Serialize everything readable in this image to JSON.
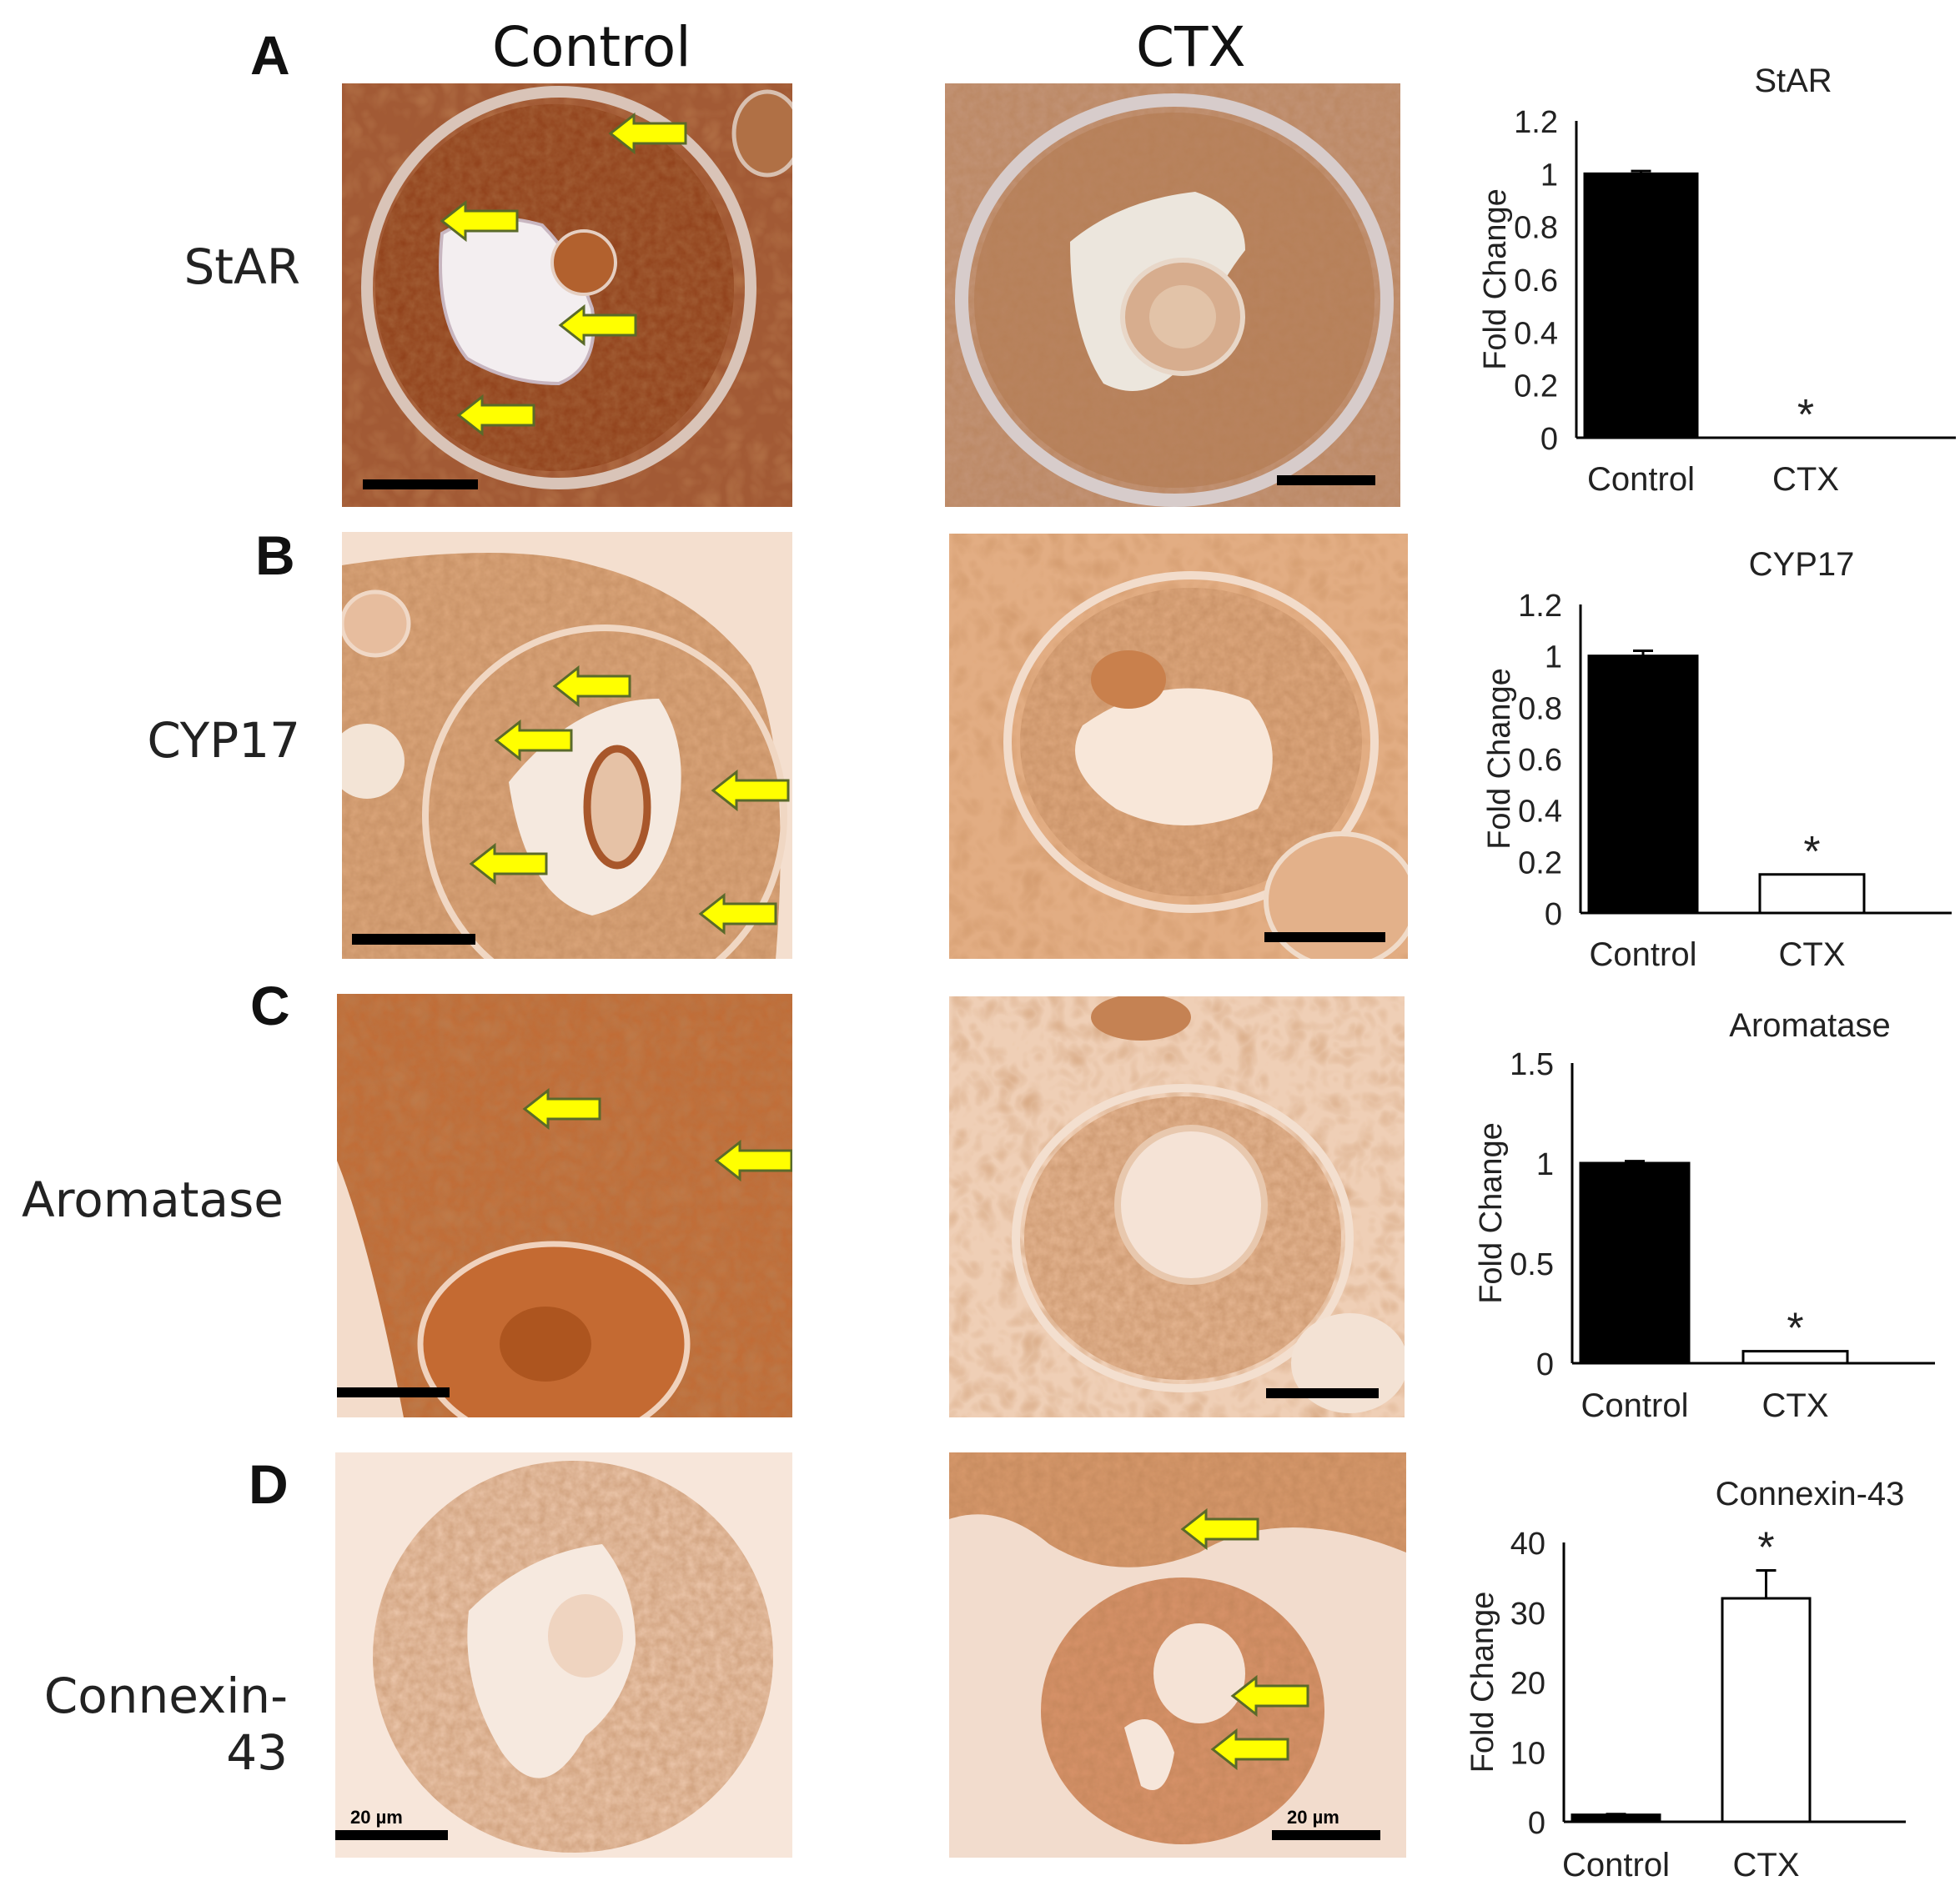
{
  "figure": {
    "columns": [
      "Control",
      "CTX"
    ],
    "rows": [
      {
        "letter": "A",
        "label": "StAR"
      },
      {
        "letter": "B",
        "label": "CYP17"
      },
      {
        "letter": "C",
        "label": "Aromatase"
      },
      {
        "letter": "D",
        "label": "Connexin-43"
      }
    ],
    "scale_bar_label": "20 µm",
    "colors": {
      "stain_dark": "#9c4a1f",
      "stain_mid": "#c47a45",
      "stain_light": "#e9c3a2",
      "background_tissue": "#f6e3d3",
      "arrow_fill": "#ffff00",
      "arrow_edge": "#5a6a2a",
      "bar_control": "#000000",
      "bar_ctx": "#ffffff"
    },
    "arrow_counts": {
      "A_control": 4,
      "A_ctx": 0,
      "B_control": 5,
      "B_ctx": 0,
      "C_control": 2,
      "C_ctx": 0,
      "D_control": 0,
      "D_ctx": 3
    }
  },
  "chart_data": [
    {
      "type": "bar",
      "title": "StAR",
      "ylabel": "Fold Change",
      "categories": [
        "Control",
        "CTX"
      ],
      "values": [
        1.0,
        0.0
      ],
      "errors": [
        0.01,
        0.0
      ],
      "ylim": [
        0,
        1.2
      ],
      "yticks": [
        "0",
        "0.2",
        "0.4",
        "0.6",
        "0.8",
        "1",
        "1.2"
      ],
      "significance": [
        "",
        "*"
      ]
    },
    {
      "type": "bar",
      "title": "CYP17",
      "ylabel": "Fold Change",
      "categories": [
        "Control",
        "CTX"
      ],
      "values": [
        1.0,
        0.15
      ],
      "errors": [
        0.02,
        0.0
      ],
      "ylim": [
        0,
        1.2
      ],
      "yticks": [
        "0",
        "0.2",
        "0.4",
        "0.6",
        "0.8",
        "1",
        "1.2"
      ],
      "significance": [
        "",
        "*"
      ]
    },
    {
      "type": "bar",
      "title": "Aromatase",
      "ylabel": "Fold Change",
      "categories": [
        "Control",
        "CTX"
      ],
      "values": [
        1.0,
        0.06
      ],
      "errors": [
        0.01,
        0.0
      ],
      "ylim": [
        0,
        1.5
      ],
      "yticks": [
        "0",
        "0.5",
        "1",
        "1.5"
      ],
      "significance": [
        "",
        "*"
      ]
    },
    {
      "type": "bar",
      "title": "Connexin-43",
      "ylabel": "Fold Change",
      "categories": [
        "Control",
        "CTX"
      ],
      "values": [
        1.0,
        32.0
      ],
      "errors": [
        0.1,
        4.0
      ],
      "ylim": [
        0,
        40
      ],
      "yticks": [
        "0",
        "10",
        "20",
        "30",
        "40"
      ],
      "significance": [
        "",
        "*"
      ]
    }
  ]
}
